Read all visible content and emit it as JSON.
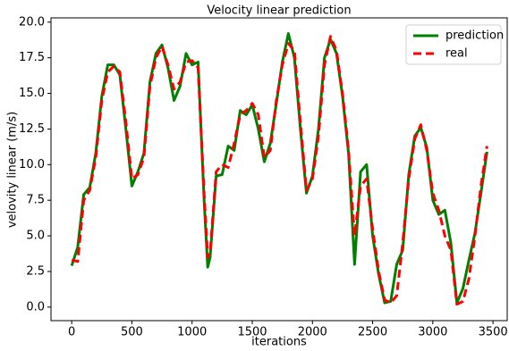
{
  "chart_data": {
    "type": "line",
    "title": "Velocity linear prediction",
    "x_label": "iterations",
    "y_label": "velovity linear (m/s)",
    "x": [
      0,
      50,
      100,
      150,
      200,
      250,
      300,
      350,
      400,
      450,
      500,
      550,
      600,
      650,
      700,
      750,
      800,
      850,
      900,
      950,
      1000,
      1050,
      1100,
      1130,
      1150,
      1200,
      1250,
      1300,
      1350,
      1400,
      1450,
      1500,
      1550,
      1600,
      1650,
      1700,
      1750,
      1800,
      1850,
      1900,
      1950,
      2000,
      2050,
      2100,
      2150,
      2200,
      2250,
      2300,
      2350,
      2400,
      2450,
      2500,
      2550,
      2600,
      2650,
      2700,
      2750,
      2800,
      2850,
      2900,
      2950,
      3000,
      3050,
      3100,
      3150,
      3200,
      3250,
      3300,
      3350,
      3400,
      3450
    ],
    "series": [
      {
        "name": "prediction",
        "color": "#008000",
        "dashed": false,
        "values": [
          2.9,
          4.2,
          7.9,
          8.4,
          10.8,
          14.8,
          17.0,
          17.0,
          16.3,
          12.5,
          8.5,
          9.5,
          10.8,
          15.8,
          17.8,
          18.4,
          16.8,
          14.5,
          15.5,
          17.8,
          17.0,
          17.2,
          7.5,
          2.8,
          3.5,
          9.2,
          9.3,
          11.3,
          11.0,
          13.8,
          13.5,
          14.2,
          12.5,
          10.2,
          11.5,
          14.3,
          17.2,
          19.2,
          17.5,
          12.5,
          8.0,
          9.2,
          12.5,
          17.5,
          18.8,
          17.8,
          14.8,
          10.8,
          3.0,
          9.5,
          10.0,
          5.0,
          2.3,
          0.3,
          0.4,
          3.0,
          4.0,
          9.3,
          12.0,
          12.6,
          11.2,
          7.5,
          6.5,
          6.8,
          4.5,
          0.3,
          1.3,
          3.3,
          5.2,
          8.0,
          10.9
        ]
      },
      {
        "name": "real",
        "color": "#ff0000",
        "dashed": true,
        "values": [
          3.3,
          3.2,
          7.5,
          8.2,
          10.5,
          14.5,
          16.5,
          16.9,
          16.5,
          13.0,
          9.0,
          9.3,
          10.5,
          15.5,
          17.5,
          18.3,
          17.0,
          15.3,
          15.8,
          17.2,
          17.3,
          16.8,
          8.0,
          3.5,
          3.8,
          9.5,
          10.0,
          9.8,
          11.5,
          13.5,
          13.8,
          14.3,
          13.5,
          10.5,
          11.0,
          14.5,
          17.0,
          18.5,
          18.0,
          13.0,
          8.2,
          9.0,
          12.0,
          17.0,
          19.0,
          18.0,
          15.0,
          11.0,
          5.0,
          8.5,
          9.0,
          5.5,
          2.5,
          0.5,
          0.3,
          0.8,
          4.5,
          9.0,
          11.8,
          12.8,
          11.0,
          8.0,
          6.8,
          5.0,
          4.0,
          0.2,
          0.4,
          2.0,
          5.0,
          8.5,
          11.3
        ]
      }
    ],
    "xlim": [
      -172,
      3618
    ],
    "ylim": [
      -0.95,
      20.3
    ],
    "xticks": [
      0,
      500,
      1000,
      1500,
      2000,
      2500,
      3000,
      3500
    ],
    "yticks": [
      {
        "value": 0,
        "label": "0.0"
      },
      2.5,
      {
        "value": 5,
        "label": "5.0"
      },
      7.5,
      {
        "value": 10,
        "label": "10.0"
      },
      12.5,
      {
        "value": 15,
        "label": "15.0"
      },
      17.5,
      {
        "value": 20,
        "label": "20.0"
      }
    ],
    "legend": "upper right",
    "grid": false
  }
}
